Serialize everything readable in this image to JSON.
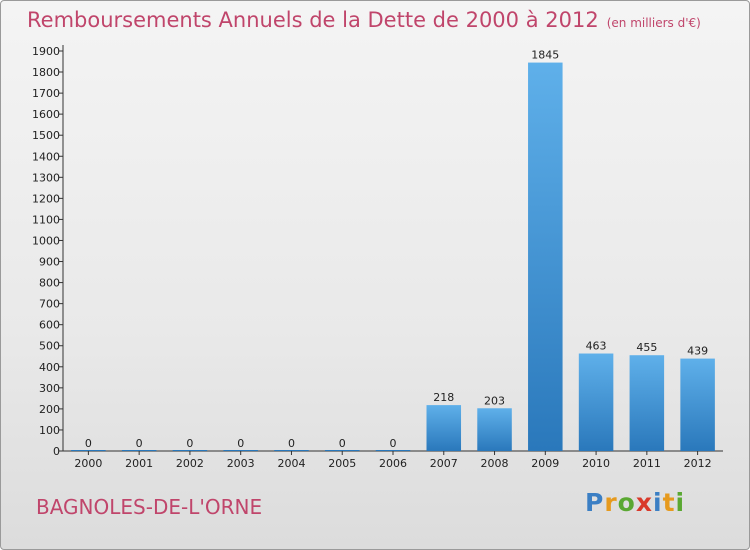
{
  "chart_data": {
    "type": "bar",
    "title": "Remboursements Annuels de la Dette de 2000 à 2012",
    "subtitle": "(en milliers d'€)",
    "categories": [
      "2000",
      "2001",
      "2002",
      "2003",
      "2004",
      "2005",
      "2006",
      "2007",
      "2008",
      "2009",
      "2010",
      "2011",
      "2012"
    ],
    "values": [
      0,
      0,
      0,
      0,
      0,
      0,
      0,
      218,
      203,
      1845,
      463,
      455,
      439
    ],
    "ylim": [
      0,
      1900
    ],
    "yticks": [
      0,
      100,
      200,
      300,
      400,
      500,
      600,
      700,
      800,
      900,
      1000,
      1100,
      1200,
      1300,
      1400,
      1500,
      1600,
      1700,
      1800,
      1900
    ],
    "grid": false,
    "bar_color": "#4a9fe0",
    "bar_color_dark": "#2a78bb"
  },
  "footer": {
    "city": "BAGNOLES-DE-L'ORNE",
    "logo_letters": [
      "P",
      "r",
      "o",
      "x",
      "i",
      "t",
      "i"
    ],
    "logo_colors": [
      "#3b7fc4",
      "#e69a1e",
      "#5aa832",
      "#d93a2b",
      "#3b7fc4",
      "#e69a1e",
      "#5aa832"
    ]
  }
}
